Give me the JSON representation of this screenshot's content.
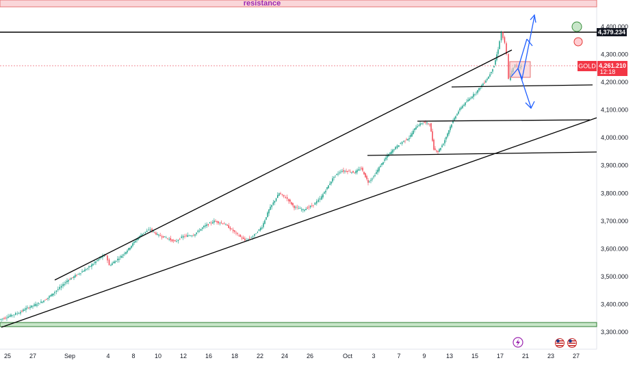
{
  "chart_data": {
    "type": "candlestick",
    "symbol": "GOLD",
    "last_price": "4,261.210",
    "countdown": "12:18",
    "high_marker": "4,379.234",
    "resistance_label": "resistance",
    "ylim": [
      3280,
      4520
    ],
    "y_ticks": [
      "4,400.000",
      "4,300.000",
      "4,200.000",
      "4,100.000",
      "4,000.000",
      "3,900.000",
      "3,800.000",
      "3,700.000",
      "3,600.000",
      "3,500.000",
      "3,400.000",
      "3,300.000"
    ],
    "x_ticks": [
      "25",
      "27",
      "Sep",
      "4",
      "8",
      "10",
      "12",
      "16",
      "18",
      "22",
      "24",
      "26",
      "Oct",
      "3",
      "7",
      "9",
      "13",
      "15",
      "17",
      "21",
      "23",
      "27"
    ],
    "price_path": [
      [
        0,
        3345
      ],
      [
        8,
        3350
      ],
      [
        18,
        3360
      ],
      [
        30,
        3370
      ],
      [
        40,
        3385
      ],
      [
        50,
        3395
      ],
      [
        60,
        3405
      ],
      [
        70,
        3420
      ],
      [
        80,
        3440
      ],
      [
        92,
        3465
      ],
      [
        100,
        3485
      ],
      [
        110,
        3500
      ],
      [
        120,
        3515
      ],
      [
        130,
        3530
      ],
      [
        140,
        3550
      ],
      [
        150,
        3570
      ],
      [
        157,
        3578
      ],
      [
        162,
        3540
      ],
      [
        170,
        3555
      ],
      [
        180,
        3575
      ],
      [
        190,
        3600
      ],
      [
        200,
        3630
      ],
      [
        210,
        3655
      ],
      [
        222,
        3670
      ],
      [
        232,
        3650
      ],
      [
        245,
        3640
      ],
      [
        258,
        3625
      ],
      [
        270,
        3645
      ],
      [
        285,
        3650
      ],
      [
        300,
        3680
      ],
      [
        315,
        3700
      ],
      [
        330,
        3690
      ],
      [
        345,
        3660
      ],
      [
        360,
        3630
      ],
      [
        372,
        3645
      ],
      [
        385,
        3680
      ],
      [
        395,
        3740
      ],
      [
        410,
        3800
      ],
      [
        422,
        3780
      ],
      [
        432,
        3750
      ],
      [
        445,
        3740
      ],
      [
        458,
        3755
      ],
      [
        470,
        3780
      ],
      [
        480,
        3820
      ],
      [
        490,
        3860
      ],
      [
        500,
        3880
      ],
      [
        510,
        3880
      ],
      [
        520,
        3875
      ],
      [
        530,
        3890
      ],
      [
        540,
        3840
      ],
      [
        548,
        3860
      ],
      [
        558,
        3900
      ],
      [
        568,
        3935
      ],
      [
        578,
        3960
      ],
      [
        590,
        3985
      ],
      [
        600,
        4000
      ],
      [
        610,
        4040
      ],
      [
        620,
        4055
      ],
      [
        630,
        4050
      ],
      [
        636,
        3960
      ],
      [
        642,
        3950
      ],
      [
        650,
        3980
      ],
      [
        660,
        4040
      ],
      [
        668,
        4080
      ],
      [
        676,
        4110
      ],
      [
        684,
        4130
      ],
      [
        692,
        4150
      ],
      [
        700,
        4170
      ],
      [
        708,
        4195
      ],
      [
        716,
        4220
      ],
      [
        724,
        4260
      ],
      [
        730,
        4320
      ],
      [
        735,
        4379
      ],
      [
        740,
        4340
      ],
      [
        743,
        4300
      ],
      [
        746,
        4210
      ],
      [
        750,
        4240
      ],
      [
        755,
        4262
      ],
      [
        760,
        4250
      ],
      [
        764,
        4261
      ]
    ],
    "annotations": {
      "resistance_zone": [
        4482,
        4525
      ],
      "support_zone": [
        3312,
        3333
      ],
      "high_line": 4379,
      "last_price_line": 4261
    }
  }
}
